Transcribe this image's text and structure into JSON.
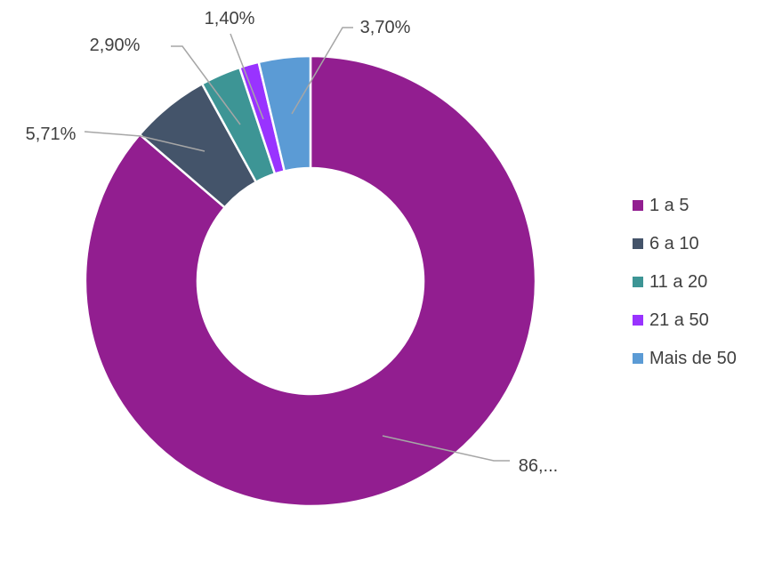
{
  "chart_data": {
    "type": "pie",
    "variant": "donut",
    "categories": [
      "1 a 5",
      "6 a 10",
      "11 a 20",
      "21 a 50",
      "Mais de 50"
    ],
    "values": [
      86.29,
      5.71,
      2.9,
      1.4,
      3.7
    ],
    "data_labels": [
      "86,...",
      "5,71%",
      "2,90%",
      "1,40%",
      "3,70%"
    ],
    "colors": [
      "#921E90",
      "#44546A",
      "#3D9595",
      "#9933FF",
      "#5B9BD5"
    ],
    "legend_position": "right",
    "start_angle_deg": 0,
    "direction": "clockwise",
    "inner_radius_ratio": 0.5
  }
}
